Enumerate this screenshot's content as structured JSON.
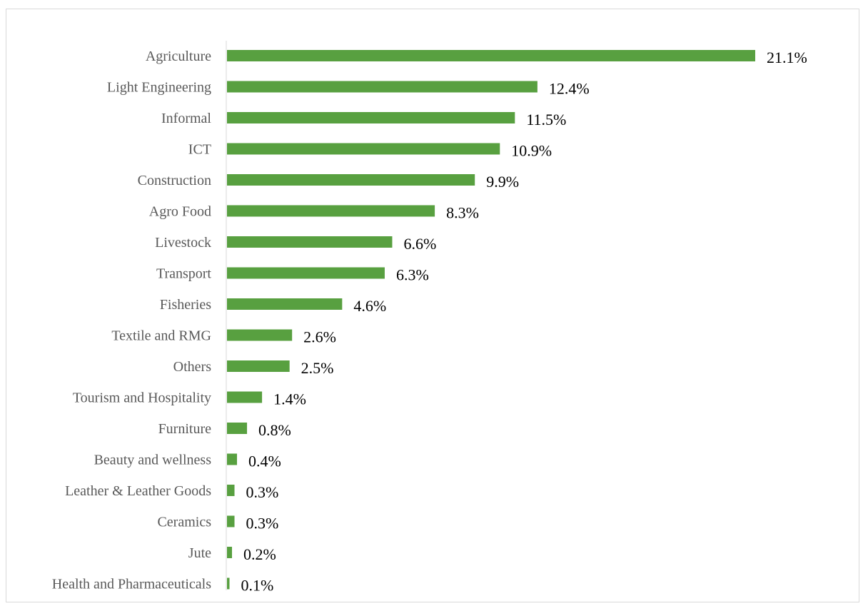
{
  "chart_data": {
    "type": "bar",
    "orientation": "horizontal",
    "categories": [
      "Agriculture",
      "Light Engineering",
      "Informal",
      "ICT",
      "Construction",
      "Agro Food",
      "Livestock",
      "Transport",
      "Fisheries",
      "Textile and RMG",
      "Others",
      "Tourism and Hospitality",
      "Furniture",
      "Beauty and wellness",
      "Leather & Leather Goods",
      "Ceramics",
      "Jute",
      "Health and Pharmaceuticals"
    ],
    "values": [
      21.1,
      12.4,
      11.5,
      10.9,
      9.9,
      8.3,
      6.6,
      6.3,
      4.6,
      2.6,
      2.5,
      1.4,
      0.8,
      0.4,
      0.3,
      0.3,
      0.2,
      0.1
    ],
    "value_labels": [
      "21.1%",
      "12.4%",
      "11.5%",
      "10.9%",
      "9.9%",
      "8.3%",
      "6.6%",
      "6.3%",
      "4.6%",
      "2.6%",
      "2.5%",
      "1.4%",
      "0.8%",
      "0.4%",
      "0.3%",
      "0.3%",
      "0.2%",
      "0.1%"
    ],
    "unit": "%",
    "xlim": [
      0,
      21.1
    ],
    "title": "",
    "xlabel": "",
    "ylabel": "",
    "grid": false,
    "legend": "none",
    "bar_color": "#58a040",
    "axis_color": "#d9d9d9"
  }
}
